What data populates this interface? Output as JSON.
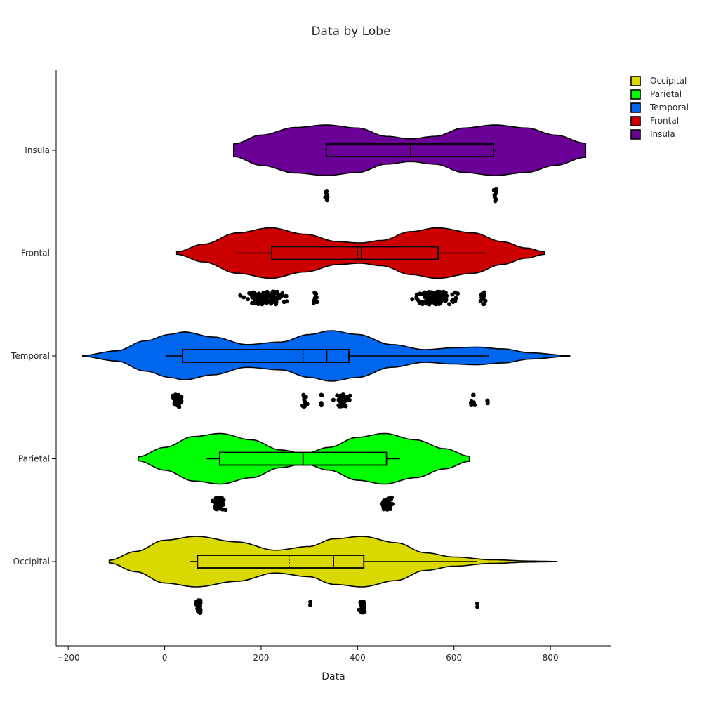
{
  "chart_data": {
    "type": "violin",
    "title": "Data by Lobe",
    "xlabel": "Data",
    "ylabel": "",
    "xlim": [
      -225,
      925
    ],
    "x_ticks": [
      -200,
      0,
      200,
      400,
      600,
      800
    ],
    "categories": [
      "Occipital",
      "Parietal",
      "Temporal",
      "Frontal",
      "Insula"
    ],
    "legend_position": "top-right",
    "grid": false,
    "series": [
      {
        "name": "Occipital",
        "color": "#d9d900",
        "violin_range": [
          -115,
          812
        ],
        "violin_profile": [
          [
            -115,
            0.05
          ],
          [
            -60,
            0.4
          ],
          [
            0,
            0.85
          ],
          [
            65,
            1.0
          ],
          [
            150,
            0.78
          ],
          [
            230,
            0.45
          ],
          [
            300,
            0.6
          ],
          [
            350,
            0.9
          ],
          [
            410,
            1.0
          ],
          [
            480,
            0.75
          ],
          [
            540,
            0.35
          ],
          [
            600,
            0.18
          ],
          [
            680,
            0.07
          ],
          [
            760,
            0.02
          ],
          [
            812,
            0.005
          ]
        ],
        "box": {
          "whisker_low": 52,
          "q1": 68,
          "median": 350,
          "mean": 258,
          "q3": 413,
          "whisker_high": 648
        },
        "points": {
          "clusters": [
            [
              70,
              12,
              30
            ],
            [
              302,
              1,
              2
            ],
            [
              410,
              10,
              28
            ],
            [
              648,
              1,
              2
            ]
          ]
        }
      },
      {
        "name": "Parietal",
        "color": "#00ff00",
        "violin_range": [
          -55,
          632
        ],
        "violin_profile": [
          [
            -55,
            0.08
          ],
          [
            0,
            0.45
          ],
          [
            60,
            0.88
          ],
          [
            115,
            1.0
          ],
          [
            180,
            0.75
          ],
          [
            240,
            0.35
          ],
          [
            290,
            0.2
          ],
          [
            340,
            0.45
          ],
          [
            400,
            0.85
          ],
          [
            455,
            1.0
          ],
          [
            520,
            0.75
          ],
          [
            580,
            0.4
          ],
          [
            632,
            0.1
          ]
        ],
        "box": {
          "whisker_low": 85,
          "q1": 114,
          "median": 287,
          "mean": 287,
          "q3": 460,
          "whisker_high": 488
        },
        "points": {
          "clusters": [
            [
              113,
              20,
              45
            ],
            [
              460,
              18,
              40
            ]
          ]
        }
      },
      {
        "name": "Temporal",
        "color": "#0066ee",
        "violin_range": [
          -170,
          840
        ],
        "violin_profile": [
          [
            -170,
            0.02
          ],
          [
            -100,
            0.2
          ],
          [
            -40,
            0.6
          ],
          [
            10,
            0.85
          ],
          [
            40,
            0.95
          ],
          [
            100,
            0.75
          ],
          [
            170,
            0.45
          ],
          [
            240,
            0.55
          ],
          [
            300,
            0.85
          ],
          [
            345,
            1.0
          ],
          [
            400,
            0.85
          ],
          [
            470,
            0.45
          ],
          [
            540,
            0.25
          ],
          [
            600,
            0.32
          ],
          [
            645,
            0.35
          ],
          [
            700,
            0.28
          ],
          [
            760,
            0.12
          ],
          [
            840,
            0.01
          ]
        ],
        "box": {
          "whisker_low": 2,
          "q1": 37,
          "median": 336,
          "mean": 287,
          "q3": 382,
          "whisker_high": 672
        },
        "points": {
          "clusters": [
            [
              27,
              16,
              30
            ],
            [
              290,
              8,
              16
            ],
            [
              325,
              3,
              4
            ],
            [
              370,
              24,
              45
            ],
            [
              640,
              8,
              9
            ],
            [
              670,
              2,
              3
            ]
          ]
        }
      },
      {
        "name": "Frontal",
        "color": "#cc0000",
        "violin_range": [
          25,
          788
        ],
        "violin_profile": [
          [
            25,
            0.05
          ],
          [
            80,
            0.35
          ],
          [
            150,
            0.8
          ],
          [
            220,
            1.0
          ],
          [
            290,
            0.75
          ],
          [
            360,
            0.45
          ],
          [
            405,
            0.4
          ],
          [
            450,
            0.5
          ],
          [
            510,
            0.85
          ],
          [
            565,
            1.0
          ],
          [
            640,
            0.8
          ],
          [
            700,
            0.45
          ],
          [
            750,
            0.2
          ],
          [
            788,
            0.05
          ]
        ],
        "box": {
          "whisker_low": 147,
          "q1": 222,
          "median": 408,
          "mean": 400,
          "q3": 567,
          "whisker_high": 666
        },
        "points": {
          "clusters": [
            [
              210,
              70,
              110
            ],
            [
              312,
              8,
              10
            ],
            [
              560,
              70,
              110
            ],
            [
              658,
              10,
              14
            ]
          ]
        }
      },
      {
        "name": "Insula",
        "color": "#6a0096",
        "violin_range": [
          143,
          873
        ],
        "violin_profile": [
          [
            143,
            0.25
          ],
          [
            200,
            0.6
          ],
          [
            270,
            0.9
          ],
          [
            335,
            1.0
          ],
          [
            400,
            0.88
          ],
          [
            460,
            0.55
          ],
          [
            510,
            0.45
          ],
          [
            560,
            0.55
          ],
          [
            620,
            0.88
          ],
          [
            685,
            1.0
          ],
          [
            750,
            0.88
          ],
          [
            810,
            0.6
          ],
          [
            873,
            0.28
          ]
        ],
        "box": {
          "whisker_low": 333,
          "q1": 335,
          "median": 510,
          "mean": 510,
          "q3": 682,
          "whisker_high": 687
        },
        "points": {
          "clusters": [
            [
              336,
              5,
              10
            ],
            [
              685,
              5,
              10
            ]
          ]
        }
      }
    ]
  }
}
